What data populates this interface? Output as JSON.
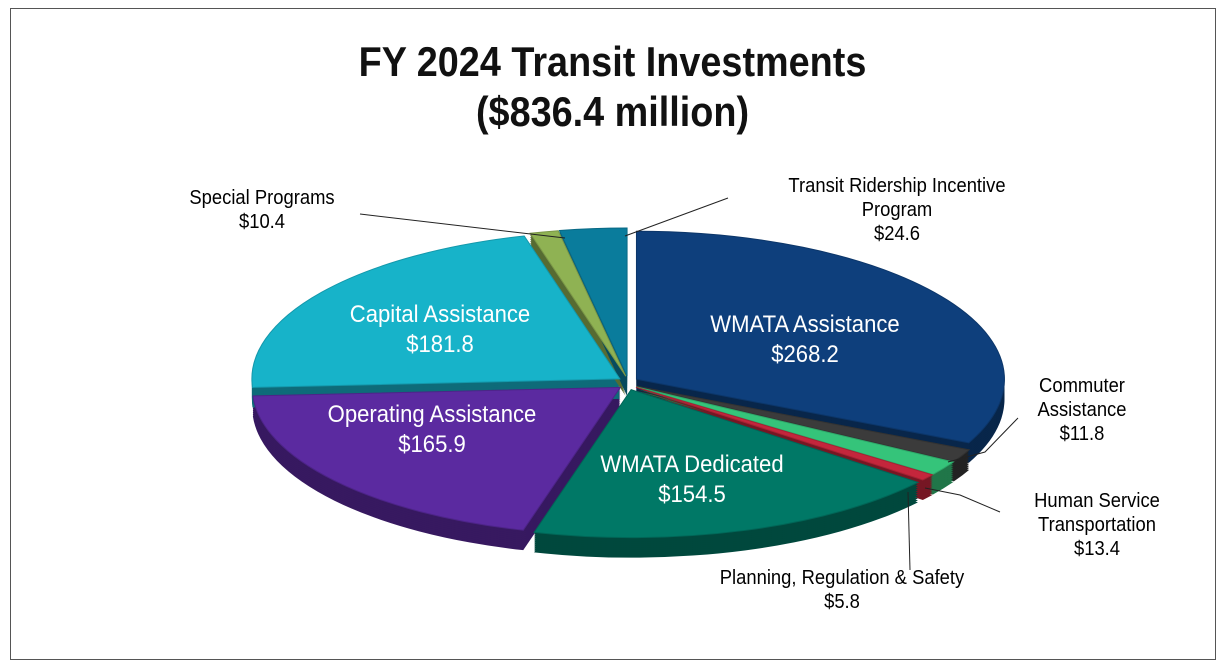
{
  "chart_data": {
    "type": "pie",
    "title": "FY 2024 Transit Investments",
    "subtitle": "($836.4 million)",
    "categories": [
      "WMATA Assistance",
      "Commuter Assistance",
      "Human Service Transportation",
      "Planning, Regulation & Safety",
      "WMATA Dedicated",
      "Operating Assistance",
      "Capital Assistance",
      "Special Programs",
      "Transit Ridership Incentive Program"
    ],
    "values": [
      268.2,
      11.8,
      13.4,
      5.8,
      154.5,
      165.9,
      181.8,
      10.4,
      24.6
    ],
    "value_labels": [
      "$268.2",
      "$11.8",
      "$13.4",
      "$5.8",
      "$154.5",
      "$165.9",
      "$181.8",
      "$10.4",
      "$24.6"
    ],
    "colors": [
      "#0e3f7c",
      "#3b3b3b",
      "#35c47a",
      "#c4263c",
      "#007866",
      "#5b2aa0",
      "#17b3c9",
      "#8fb253",
      "#0a7c9c"
    ]
  }
}
